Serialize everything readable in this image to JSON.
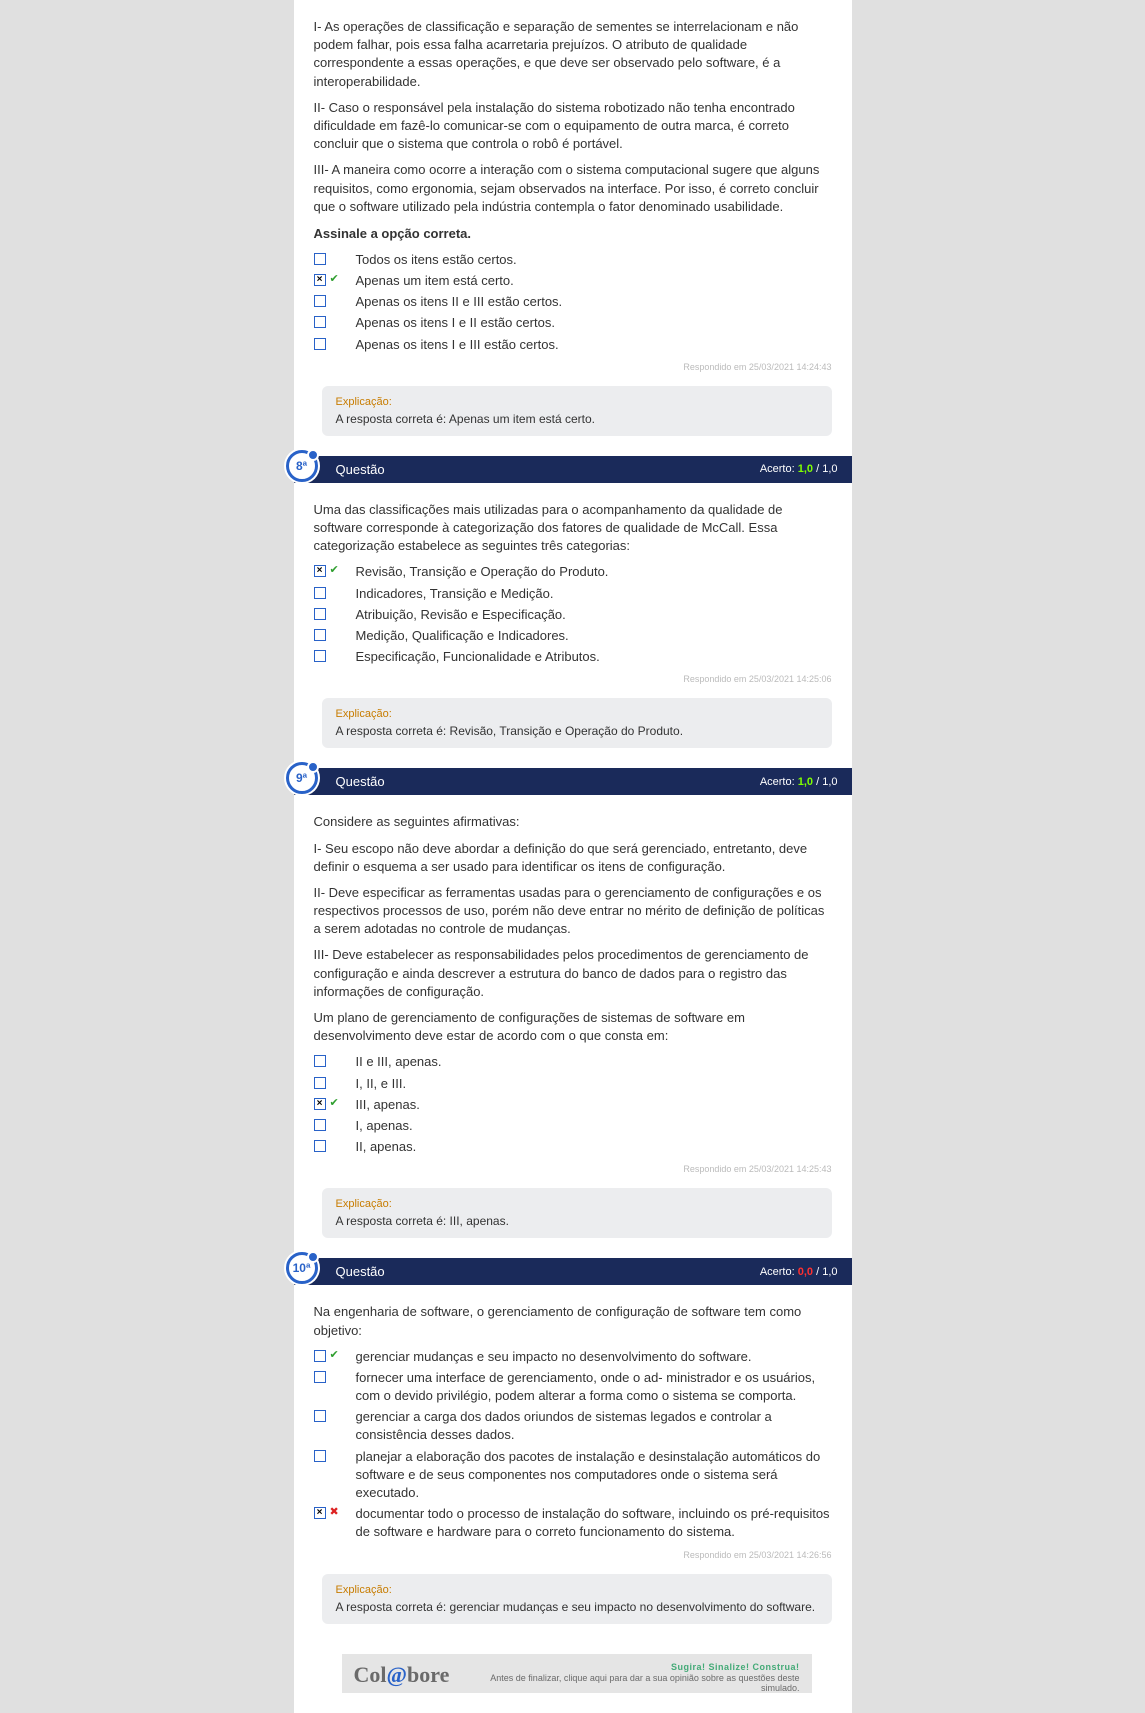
{
  "colors": {
    "page_bg": "#e0e0e0",
    "panel_bg": "#ffffff",
    "header_bg": "#1a2a5a",
    "badge_border": "#2962c8",
    "checkbox_border": "#2962c8",
    "explain_bg": "#ecedef",
    "explain_label": "#c77c00",
    "score_green": "#7fff00",
    "score_red": "#ff3030",
    "mark_correct": "#2e9e2e",
    "mark_wrong": "#d22",
    "timestamp": "#bbbbbb"
  },
  "q7": {
    "statements": [
      "I- As operações de classificação e separação de sementes se interrelacionam e não podem falhar, pois essa falha acarretaria prejuízos. O atributo de qualidade correspondente a essas operações, e que deve ser observado pelo software, é a interoperabilidade.",
      "II- Caso o responsável pela instalação do sistema robotizado não tenha encontrado dificuldade em fazê-lo comunicar-se com o equipamento de outra marca, é correto concluir que o sistema que controla o robô é portável.",
      "III- A maneira como ocorre a interação com o sistema computacional sugere que alguns requisitos, como ergonomia, sejam observados na interface. Por isso, é correto concluir que o software utilizado pela indústria contempla o fator denominado usabilidade."
    ],
    "prompt": "Assinale a opção correta.",
    "options": [
      {
        "text": "Todos os itens estão certos.",
        "checked": false,
        "mark": ""
      },
      {
        "text": "Apenas um item está certo.",
        "checked": true,
        "mark": "correct"
      },
      {
        "text": "Apenas os itens II e III estão certos.",
        "checked": false,
        "mark": ""
      },
      {
        "text": "Apenas os itens I e II estão certos.",
        "checked": false,
        "mark": ""
      },
      {
        "text": "Apenas os itens I e III estão certos.",
        "checked": false,
        "mark": ""
      }
    ],
    "timestamp": "Respondido em 25/03/2021 14:24:43",
    "explain_label": "Explicação:",
    "explain_text": "A resposta correta é: Apenas um item está certo."
  },
  "q8": {
    "badge": "8ª",
    "title": "Questão",
    "score_label": "Acerto:",
    "score_earned": "1,0",
    "score_total": "/ 1,0",
    "intro": "Uma das classificações mais utilizadas para o acompanhamento da qualidade de software corresponde à categorização dos fatores de qualidade de McCall. Essa categorização estabelece as seguintes três categorias:",
    "options": [
      {
        "text": "Revisão, Transição e Operação do Produto.",
        "checked": true,
        "mark": "correct"
      },
      {
        "text": "Indicadores, Transição e Medição.",
        "checked": false,
        "mark": ""
      },
      {
        "text": "Atribuição, Revisão e Especificação.",
        "checked": false,
        "mark": ""
      },
      {
        "text": "Medição, Qualificação e Indicadores.",
        "checked": false,
        "mark": ""
      },
      {
        "text": "Especificação, Funcionalidade e Atributos.",
        "checked": false,
        "mark": ""
      }
    ],
    "timestamp": "Respondido em 25/03/2021 14:25:06",
    "explain_label": "Explicação:",
    "explain_text": "A resposta correta é: Revisão, Transição e Operação do Produto."
  },
  "q9": {
    "badge": "9ª",
    "title": "Questão",
    "score_label": "Acerto:",
    "score_earned": "1,0",
    "score_total": "/ 1,0",
    "intro": "Considere as seguintes afirmativas:",
    "statements": [
      "I- Seu escopo não deve abordar a definição do que será gerenciado, entretanto, deve definir o esquema a ser usado para identificar os itens de configuração.",
      "II- Deve especificar as ferramentas usadas para o gerenciamento de configurações e os respectivos processos de uso, porém não deve entrar no mérito de definição de políticas a serem adotadas no controle de mudanças.",
      "III- Deve estabelecer as responsabilidades pelos procedimentos de gerenciamento de configuração e ainda descrever a estrutura do banco de dados para o registro das informações de configuração."
    ],
    "closing": "Um plano de gerenciamento de configurações de sistemas de software em desenvolvimento deve estar de acordo com o que consta em:",
    "options": [
      {
        "text": "II e III, apenas.",
        "checked": false,
        "mark": ""
      },
      {
        "text": "I, II, e III.",
        "checked": false,
        "mark": ""
      },
      {
        "text": "III, apenas.",
        "checked": true,
        "mark": "correct"
      },
      {
        "text": "I, apenas.",
        "checked": false,
        "mark": ""
      },
      {
        "text": "II, apenas.",
        "checked": false,
        "mark": ""
      }
    ],
    "timestamp": "Respondido em 25/03/2021 14:25:43",
    "explain_label": "Explicação:",
    "explain_text": "A resposta correta é: III, apenas."
  },
  "q10": {
    "badge": "10ª",
    "title": "Questão",
    "score_label": "Acerto:",
    "score_earned": "0,0",
    "score_total": "/ 1,0",
    "intro": "Na engenharia de software, o gerenciamento de configuração de software tem como objetivo:",
    "options": [
      {
        "text": "gerenciar mudanças e seu impacto no desenvolvimento do software.",
        "checked": false,
        "mark": "correct"
      },
      {
        "text": "fornecer uma interface de gerenciamento, onde o ad- ministrador e os usuários, com o devido privilégio, podem alterar a forma como o sistema se comporta.",
        "checked": false,
        "mark": ""
      },
      {
        "text": "gerenciar a carga dos dados oriundos de sistemas legados e controlar a consistência desses dados.",
        "checked": false,
        "mark": ""
      },
      {
        "text": "planejar a elaboração dos pacotes de instalação e desinstalação automáticos do software e de seus componentes nos computadores onde o sistema será executado.",
        "checked": false,
        "mark": ""
      },
      {
        "text": "documentar todo o processo de instalação do software, incluindo os pré-requisitos de software e hardware para o correto funcionamento do sistema.",
        "checked": true,
        "mark": "wrong"
      }
    ],
    "timestamp": "Respondido em 25/03/2021 14:26:56",
    "explain_label": "Explicação:",
    "explain_text": "A resposta correta é: gerenciar mudanças e seu impacto no desenvolvimento do software."
  },
  "colabore": {
    "logo_pre": "Col",
    "logo_at": "@",
    "logo_post": "bore",
    "top": "Sugira! Sinalize! Construa!",
    "sub": "Antes de finalizar, clique aqui para dar a sua opinião sobre as questões deste simulado."
  }
}
